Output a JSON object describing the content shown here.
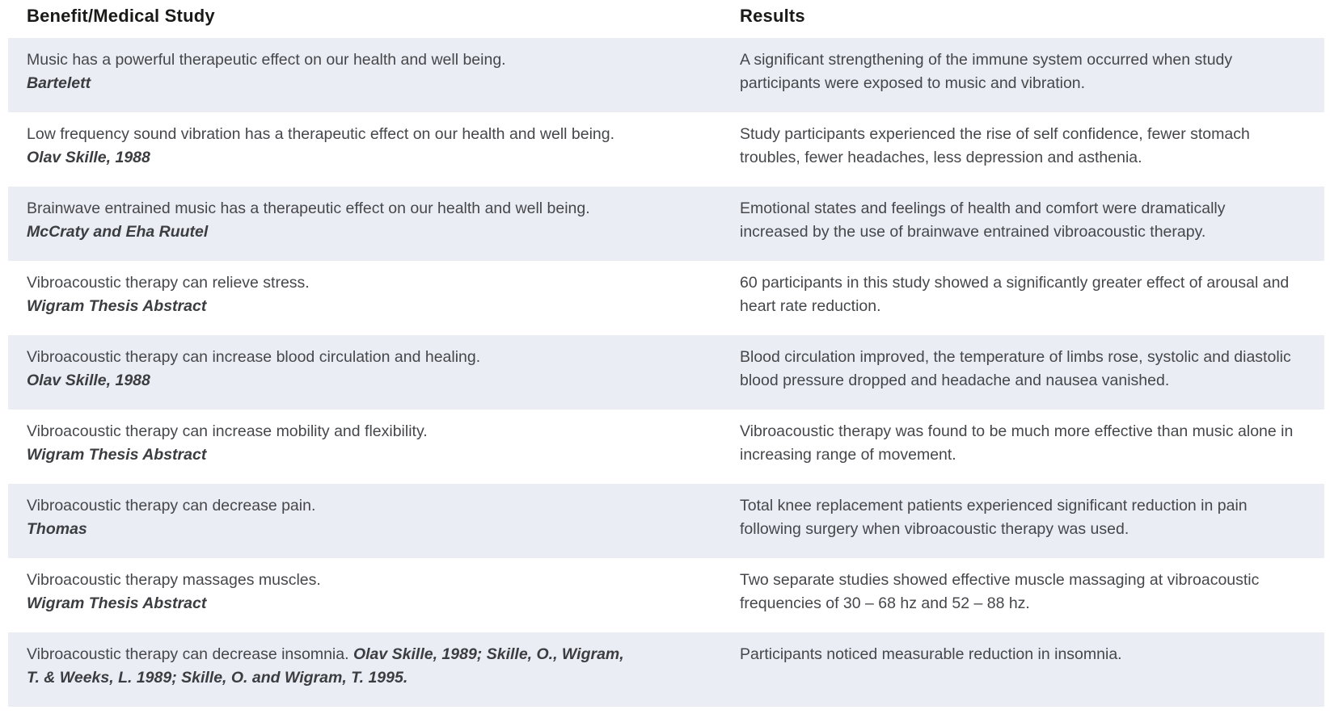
{
  "table": {
    "columns": [
      "Benefit/Medical Study",
      "Results"
    ],
    "rows": [
      {
        "benefit": "Music has a powerful therapeutic effect on our health and well being.",
        "citation": "Bartelett",
        "citation_inline": false,
        "result": "A significant strengthening of the immune system occurred when study participants were exposed to music and vibration."
      },
      {
        "benefit": "Low frequency sound vibration has a therapeutic effect on our health and well being.",
        "citation": "Olav Skille, 1988",
        "citation_inline": true,
        "result": "Study participants experienced the rise of self confidence, fewer stomach troubles, fewer headaches, less depression and asthenia."
      },
      {
        "benefit": "Brainwave entrained music has a therapeutic effect on our health and well being.",
        "citation": "McCraty and Eha Ruutel",
        "citation_inline": true,
        "result": "Emotional states and feelings of health and comfort were dramatically increased by the use of brainwave entrained vibroacoustic therapy."
      },
      {
        "benefit": "Vibroacoustic therapy can relieve stress.",
        "citation": "Wigram Thesis Abstract",
        "citation_inline": false,
        "result": "60 participants in this study showed a significantly greater effect of arousal and heart rate reduction."
      },
      {
        "benefit": "Vibroacoustic therapy can increase blood circulation and healing.",
        "citation": "Olav Skille, 1988",
        "citation_inline": false,
        "result": "Blood circulation improved, the temperature of limbs rose, systolic and diastolic blood pressure dropped and headache and nausea vanished."
      },
      {
        "benefit": "Vibroacoustic therapy can increase mobility and flexibility.",
        "citation": "Wigram Thesis Abstract",
        "citation_inline": false,
        "result": "Vibroacoustic therapy was found to be much more effective than music alone in increasing range of movement."
      },
      {
        "benefit": "Vibroacoustic therapy can decrease pain.",
        "citation": "Thomas",
        "citation_inline": false,
        "result": "Total knee replacement patients experienced significant reduction in pain following surgery when vibroacoustic therapy was used."
      },
      {
        "benefit": "Vibroacoustic therapy massages muscles.",
        "citation": "Wigram Thesis Abstract",
        "citation_inline": false,
        "result": "Two separate studies showed effective muscle massaging at vibroacoustic frequencies of 30 – 68 hz and 52 – 88 hz."
      },
      {
        "benefit": "Vibroacoustic therapy can decrease insomnia.",
        "citation": "Olav Skille, 1989; Skille, O., Wigram, T. & Weeks, L. 1989; Skille, O. and Wigram, T. 1995.",
        "citation_inline": true,
        "result": "Participants noticed measurable reduction in insomnia."
      }
    ]
  },
  "colors": {
    "row_shade": "#eaedf4",
    "text": "#46474b",
    "heading": "#1a1a19",
    "citation": "#3c3d41"
  }
}
